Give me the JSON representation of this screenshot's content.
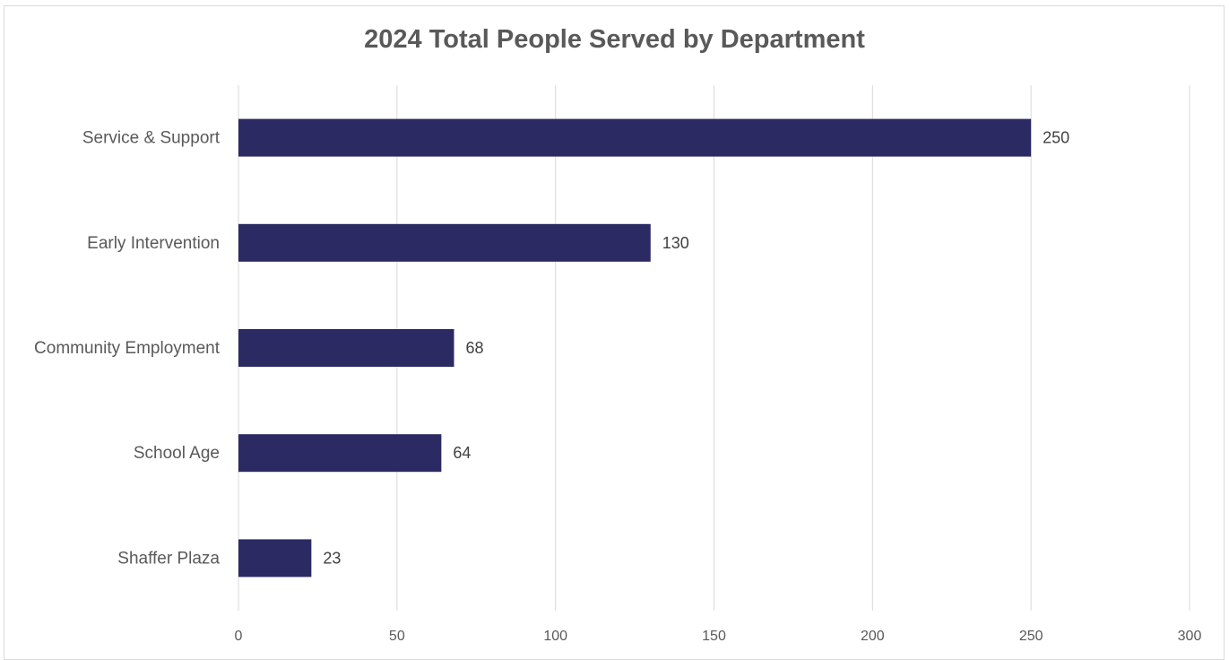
{
  "chart_data": {
    "type": "bar",
    "orientation": "horizontal",
    "title": "2024 Total People Served by Department",
    "xlabel": "",
    "ylabel": "",
    "categories": [
      "Service & Support",
      "Early Intervention",
      "Community Employment",
      "School Age",
      "Shaffer Plaza"
    ],
    "values": [
      250,
      130,
      68,
      64,
      23
    ],
    "xlim": [
      0,
      300
    ],
    "x_ticks": [
      0,
      50,
      100,
      150,
      200,
      250,
      300
    ],
    "grid": "vertical",
    "legend": "none",
    "data_labels": true,
    "bar_color": "#2b2a63"
  }
}
